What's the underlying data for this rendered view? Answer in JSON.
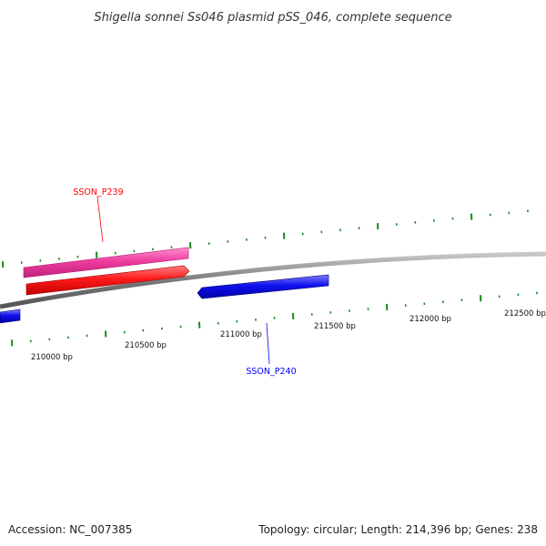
{
  "title": "Shigella sonnei Ss046 plasmid pSS_046, complete sequence",
  "footer": {
    "accession": "Accession: NC_007385",
    "summary": "Topology: circular; Length: 214,396 bp; Genes: 238"
  },
  "ticks": [
    "210000 bp",
    "210500 bp",
    "211000 bp",
    "211500 bp",
    "212000 bp",
    "212500 bp"
  ],
  "genes": {
    "SSON_P239": {
      "label": "SSON_P239",
      "color": "#ff0000"
    },
    "SSON_P240": {
      "label": "SSON_P240",
      "color": "#0000ff"
    }
  },
  "colors": {
    "backbone": "#888888",
    "ticks": "#1a8a1a",
    "pink_feature": "#ee3ea0",
    "red_gene": "#ff1a1a",
    "blue_gene": "#1010ee"
  }
}
